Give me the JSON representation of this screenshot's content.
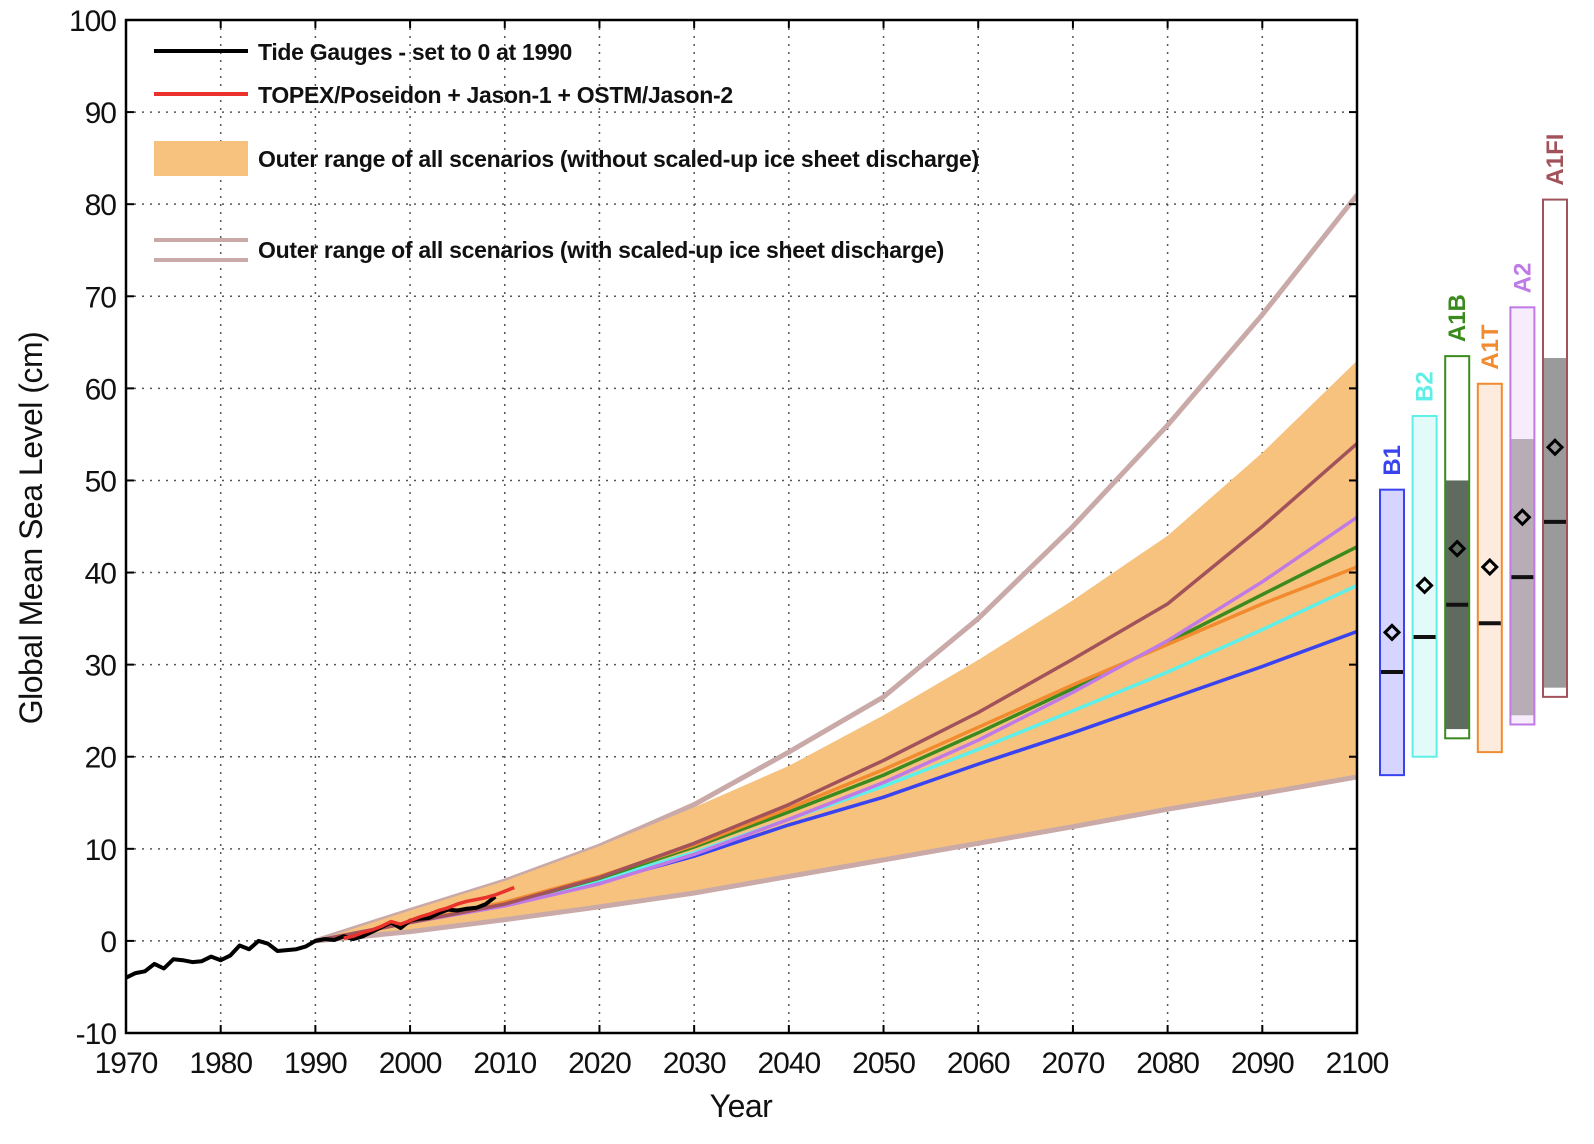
{
  "chart_data": {
    "type": "line",
    "title": "",
    "xlabel": "Year",
    "ylabel": "Global Mean Sea Level (cm)",
    "xlim": [
      1970,
      2100
    ],
    "ylim": [
      -10,
      100
    ],
    "xticks": [
      "1970",
      "1980",
      "1990",
      "2000",
      "2010",
      "2020",
      "2030",
      "2040",
      "2050",
      "2060",
      "2070",
      "2080",
      "2090",
      "2100"
    ],
    "yticks": [
      "-10",
      "0",
      "10",
      "20",
      "30",
      "40",
      "50",
      "60",
      "70",
      "80",
      "90",
      "100"
    ],
    "grid": true,
    "legend_position": "top-left",
    "legend": [
      {
        "label": "Tide Gauges - set to 0 at 1990",
        "kind": "line",
        "color": "#000000"
      },
      {
        "label": "TOPEX/Poseidon + Jason-1 + OSTM/Jason-2",
        "kind": "line",
        "color": "#e8322b"
      },
      {
        "label": "Outer range of all scenarios (without scaled-up ice sheet discharge)",
        "kind": "band",
        "color": "#f6c27e"
      },
      {
        "label": "Outer range of all scenarios (with scaled-up ice sheet discharge)",
        "kind": "double-line",
        "color": "#c9aaa8"
      }
    ],
    "tide_gauges": {
      "x": [
        1970,
        1971,
        1972,
        1973,
        1974,
        1975,
        1976,
        1977,
        1978,
        1979,
        1980,
        1981,
        1982,
        1983,
        1984,
        1985,
        1986,
        1987,
        1988,
        1989,
        1990,
        1991,
        1992,
        1993,
        1994,
        1995,
        1996,
        1997,
        1998,
        1999,
        2000,
        2001,
        2002,
        2003,
        2004,
        2005,
        2006,
        2007,
        2008,
        2009
      ],
      "y": [
        -4.0,
        -3.5,
        -3.3,
        -2.5,
        -3.0,
        -2.0,
        -2.1,
        -2.3,
        -2.2,
        -1.7,
        -2.1,
        -1.6,
        -0.5,
        -0.9,
        0.0,
        -0.3,
        -1.1,
        -1.0,
        -0.9,
        -0.6,
        0.0,
        0.2,
        0.1,
        0.5,
        0.2,
        0.5,
        1.0,
        1.5,
        2.0,
        1.4,
        2.2,
        2.4,
        2.5,
        3.0,
        3.4,
        3.3,
        3.5,
        3.6,
        4.0,
        4.8
      ],
      "color": "#000000"
    },
    "satellite": {
      "x": [
        1993,
        1994,
        1995,
        1996,
        1997,
        1998,
        1999,
        2000,
        2001,
        2002,
        2003,
        2004,
        2005,
        2006,
        2007,
        2008,
        2009,
        2010,
        2011
      ],
      "y": [
        0.3,
        0.5,
        0.9,
        1.2,
        1.6,
        2.1,
        1.8,
        2.2,
        2.6,
        2.9,
        3.3,
        3.6,
        4.0,
        4.3,
        4.5,
        4.7,
        5.0,
        5.4,
        5.8
      ],
      "color": "#e8322b"
    },
    "band_without": {
      "x": [
        1990,
        2000,
        2010,
        2020,
        2030,
        2040,
        2050,
        2060,
        2070,
        2080,
        2090,
        2100
      ],
      "upper": [
        0,
        3.3,
        6.5,
        10.3,
        14.5,
        19.0,
        24.5,
        30.5,
        37.0,
        44.0,
        53.0,
        63.0
      ],
      "lower": [
        0,
        1.0,
        2.3,
        3.7,
        5.2,
        7.0,
        8.8,
        10.6,
        12.4,
        14.3,
        16.0,
        17.8
      ],
      "color": "#f6c27e"
    },
    "band_with": {
      "x": [
        1990,
        2000,
        2010,
        2020,
        2030,
        2040,
        2050,
        2060,
        2070,
        2080,
        2090,
        2100
      ],
      "upper": [
        0,
        3.3,
        6.5,
        10.3,
        14.8,
        20.5,
        26.5,
        35.0,
        45.0,
        56.0,
        68.0,
        81.0
      ],
      "lower": [
        0,
        1.0,
        2.3,
        3.7,
        5.2,
        7.0,
        8.8,
        10.6,
        12.4,
        14.3,
        16.0,
        17.8
      ],
      "color": "#c9aaa8"
    },
    "series": [
      {
        "name": "B1",
        "color": "#3a43f0",
        "x": [
          1990,
          2000,
          2010,
          2020,
          2030,
          2040,
          2050,
          2060,
          2070,
          2080,
          2090,
          2100
        ],
        "y": [
          0,
          2.0,
          4.0,
          6.4,
          9.2,
          12.6,
          15.6,
          19.2,
          22.6,
          26.2,
          29.8,
          33.6
        ]
      },
      {
        "name": "B2",
        "color": "#5ef0e8",
        "x": [
          1990,
          2000,
          2010,
          2020,
          2030,
          2040,
          2050,
          2060,
          2070,
          2080,
          2090,
          2100
        ],
        "y": [
          0,
          2.0,
          4.0,
          6.6,
          9.6,
          13.2,
          16.8,
          20.8,
          25.0,
          29.2,
          33.8,
          38.6
        ]
      },
      {
        "name": "A1B",
        "color": "#3a8a1e",
        "x": [
          1990,
          2000,
          2010,
          2020,
          2030,
          2040,
          2050,
          2060,
          2070,
          2080,
          2090,
          2100
        ],
        "y": [
          0,
          2.0,
          4.0,
          6.8,
          10.2,
          14.0,
          18.0,
          22.6,
          27.4,
          32.4,
          37.6,
          42.8
        ]
      },
      {
        "name": "A1T",
        "color": "#f28a2e",
        "x": [
          1990,
          2000,
          2010,
          2020,
          2030,
          2040,
          2050,
          2060,
          2070,
          2080,
          2090,
          2100
        ],
        "y": [
          0,
          2.0,
          4.2,
          7.0,
          10.4,
          14.4,
          18.6,
          23.2,
          27.8,
          32.2,
          36.6,
          40.6
        ]
      },
      {
        "name": "A2",
        "color": "#c07ae6",
        "x": [
          1990,
          2000,
          2010,
          2020,
          2030,
          2040,
          2050,
          2060,
          2070,
          2080,
          2090,
          2100
        ],
        "y": [
          0,
          2.0,
          3.8,
          6.2,
          9.4,
          13.2,
          17.2,
          21.8,
          27.0,
          32.6,
          39.0,
          46.0
        ]
      },
      {
        "name": "A1FI",
        "color": "#a2525a",
        "x": [
          1990,
          2000,
          2010,
          2020,
          2030,
          2040,
          2050,
          2060,
          2070,
          2080,
          2090,
          2100
        ],
        "y": [
          0,
          2.0,
          4.0,
          6.9,
          10.6,
          14.8,
          19.6,
          24.8,
          30.6,
          36.6,
          45.0,
          54.0
        ]
      }
    ],
    "scenario_bars": [
      {
        "name": "B1",
        "color": "#3a43f0",
        "fill": "#d5d5ff",
        "fill_inner": "#d5d5ff",
        "range": [
          18,
          49
        ],
        "inner": [
          18,
          40
        ],
        "mean": 33.5,
        "median": 29.2
      },
      {
        "name": "B2",
        "color": "#5ef0e8",
        "fill": "#e2fbfa",
        "fill_inner": "#e2fbfa",
        "range": [
          20,
          57
        ],
        "inner": [
          20,
          45.5
        ],
        "mean": 38.6,
        "median": 33.0
      },
      {
        "name": "A1B",
        "color": "#3a8a1e",
        "fill": "#ffffff",
        "fill_inner": "#5e6b5e",
        "range": [
          22,
          63.5
        ],
        "inner": [
          23,
          50
        ],
        "mean": 42.6,
        "median": 36.5
      },
      {
        "name": "A1T",
        "color": "#f28a2e",
        "fill": "#fdebdd",
        "fill_inner": "#fdebdd",
        "range": [
          20.5,
          60.5
        ],
        "inner": [
          20.5,
          47.5
        ],
        "mean": 40.6,
        "median": 34.5
      },
      {
        "name": "A2",
        "color": "#c07ae6",
        "fill": "#f6ecfb",
        "fill_inner": "#b8adb7",
        "range": [
          23.5,
          68.8
        ],
        "inner": [
          24.5,
          54.5
        ],
        "mean": 46.0,
        "median": 39.5
      },
      {
        "name": "A1FI",
        "color": "#a2525a",
        "fill": "#ffffff",
        "fill_inner": "#9a9a9a",
        "range": [
          26.5,
          80.5
        ],
        "inner": [
          27.5,
          63.3
        ],
        "mean": 53.6,
        "median": 45.5
      }
    ]
  }
}
